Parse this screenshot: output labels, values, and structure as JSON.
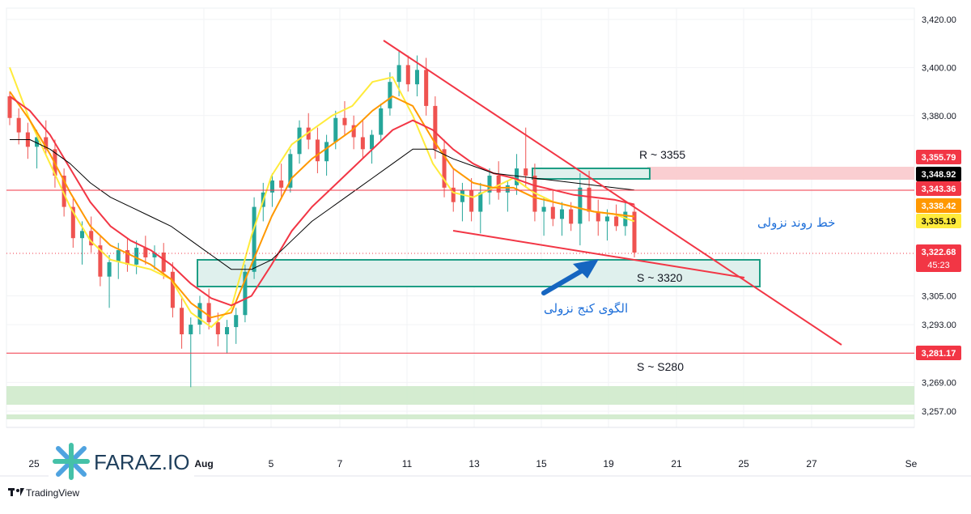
{
  "watermark": {
    "brand": "FARAZ.IO",
    "footer": "TradingView"
  },
  "chart_data": {
    "type": "line",
    "title": "",
    "x_ticks": [
      "25",
      "Aug",
      "5",
      "7",
      "11",
      "13",
      "15",
      "19",
      "21",
      "25",
      "27",
      "Se"
    ],
    "y_ticks": [
      "3,420.00",
      "3,400.00",
      "3,380.00",
      "3,305.00",
      "3,293.00",
      "3,269.00",
      "3,257.00"
    ],
    "price_labels": [
      {
        "value": "3,355.79",
        "color": "#f23645",
        "text_color": "#ffffff"
      },
      {
        "value": "3,348.92",
        "color": "#000000",
        "text_color": "#ffffff"
      },
      {
        "value": "3,343.36",
        "color": "#f23645",
        "text_color": "#ffffff"
      },
      {
        "value": "3,338.42",
        "color": "#ff9800",
        "text_color": "#ffffff"
      },
      {
        "value": "3,335.19",
        "color": "#ffeb3b",
        "text_color": "#000000"
      },
      {
        "value": "3,322.68",
        "color": "#f23645",
        "text_color": "#ffffff",
        "sub": "45:23"
      },
      {
        "value": "3,281.17",
        "color": "#f23645",
        "text_color": "#ffffff"
      }
    ],
    "levels": {
      "resistance": "R ~ 3355",
      "support": "S ~ 3320",
      "support_low": "S ~ S280"
    },
    "annotations": {
      "trendline": "خط روند نزولی",
      "wedge": "الگوی کنج نزولی"
    },
    "candles": [
      {
        "o": 3388,
        "h": 3390,
        "l": 3376,
        "c": 3379
      },
      {
        "o": 3379,
        "h": 3383,
        "l": 3368,
        "c": 3373
      },
      {
        "o": 3373,
        "h": 3377,
        "l": 3362,
        "c": 3367
      },
      {
        "o": 3367,
        "h": 3374,
        "l": 3358,
        "c": 3371
      },
      {
        "o": 3371,
        "h": 3378,
        "l": 3364,
        "c": 3366
      },
      {
        "o": 3366,
        "h": 3370,
        "l": 3350,
        "c": 3355
      },
      {
        "o": 3355,
        "h": 3358,
        "l": 3338,
        "c": 3342
      },
      {
        "o": 3342,
        "h": 3346,
        "l": 3325,
        "c": 3329
      },
      {
        "o": 3329,
        "h": 3336,
        "l": 3318,
        "c": 3332
      },
      {
        "o": 3332,
        "h": 3338,
        "l": 3323,
        "c": 3326
      },
      {
        "o": 3326,
        "h": 3330,
        "l": 3309,
        "c": 3313
      },
      {
        "o": 3313,
        "h": 3322,
        "l": 3300,
        "c": 3319
      },
      {
        "o": 3319,
        "h": 3327,
        "l": 3312,
        "c": 3324
      },
      {
        "o": 3324,
        "h": 3329,
        "l": 3315,
        "c": 3318
      },
      {
        "o": 3318,
        "h": 3328,
        "l": 3314,
        "c": 3325
      },
      {
        "o": 3325,
        "h": 3330,
        "l": 3318,
        "c": 3321
      },
      {
        "o": 3321,
        "h": 3326,
        "l": 3316,
        "c": 3323
      },
      {
        "o": 3323,
        "h": 3327,
        "l": 3312,
        "c": 3315
      },
      {
        "o": 3315,
        "h": 3319,
        "l": 3296,
        "c": 3300
      },
      {
        "o": 3300,
        "h": 3304,
        "l": 3283,
        "c": 3289
      },
      {
        "o": 3289,
        "h": 3296,
        "l": 3267,
        "c": 3293
      },
      {
        "o": 3293,
        "h": 3305,
        "l": 3289,
        "c": 3302
      },
      {
        "o": 3302,
        "h": 3308,
        "l": 3291,
        "c": 3294
      },
      {
        "o": 3294,
        "h": 3298,
        "l": 3284,
        "c": 3289
      },
      {
        "o": 3289,
        "h": 3295,
        "l": 3281,
        "c": 3292
      },
      {
        "o": 3292,
        "h": 3300,
        "l": 3285,
        "c": 3297
      },
      {
        "o": 3297,
        "h": 3318,
        "l": 3294,
        "c": 3315
      },
      {
        "o": 3315,
        "h": 3346,
        "l": 3312,
        "c": 3342
      },
      {
        "o": 3342,
        "h": 3352,
        "l": 3336,
        "c": 3348
      },
      {
        "o": 3348,
        "h": 3356,
        "l": 3342,
        "c": 3353
      },
      {
        "o": 3353,
        "h": 3360,
        "l": 3346,
        "c": 3350
      },
      {
        "o": 3350,
        "h": 3366,
        "l": 3348,
        "c": 3364
      },
      {
        "o": 3364,
        "h": 3378,
        "l": 3360,
        "c": 3375
      },
      {
        "o": 3375,
        "h": 3381,
        "l": 3366,
        "c": 3370
      },
      {
        "o": 3370,
        "h": 3375,
        "l": 3356,
        "c": 3361
      },
      {
        "o": 3361,
        "h": 3372,
        "l": 3355,
        "c": 3369
      },
      {
        "o": 3369,
        "h": 3382,
        "l": 3366,
        "c": 3379
      },
      {
        "o": 3379,
        "h": 3386,
        "l": 3372,
        "c": 3376
      },
      {
        "o": 3376,
        "h": 3380,
        "l": 3366,
        "c": 3371
      },
      {
        "o": 3371,
        "h": 3378,
        "l": 3362,
        "c": 3366
      },
      {
        "o": 3366,
        "h": 3374,
        "l": 3360,
        "c": 3372
      },
      {
        "o": 3372,
        "h": 3385,
        "l": 3369,
        "c": 3383
      },
      {
        "o": 3383,
        "h": 3398,
        "l": 3380,
        "c": 3394
      },
      {
        "o": 3394,
        "h": 3407,
        "l": 3388,
        "c": 3401
      },
      {
        "o": 3401,
        "h": 3405,
        "l": 3390,
        "c": 3393
      },
      {
        "o": 3393,
        "h": 3405,
        "l": 3388,
        "c": 3399
      },
      {
        "o": 3399,
        "h": 3404,
        "l": 3380,
        "c": 3384
      },
      {
        "o": 3384,
        "h": 3388,
        "l": 3362,
        "c": 3366
      },
      {
        "o": 3366,
        "h": 3370,
        "l": 3346,
        "c": 3350
      },
      {
        "o": 3350,
        "h": 3358,
        "l": 3340,
        "c": 3344
      },
      {
        "o": 3344,
        "h": 3352,
        "l": 3336,
        "c": 3349
      },
      {
        "o": 3349,
        "h": 3354,
        "l": 3336,
        "c": 3340
      },
      {
        "o": 3340,
        "h": 3352,
        "l": 3331,
        "c": 3348
      },
      {
        "o": 3348,
        "h": 3358,
        "l": 3343,
        "c": 3355
      },
      {
        "o": 3355,
        "h": 3361,
        "l": 3345,
        "c": 3348
      },
      {
        "o": 3348,
        "h": 3353,
        "l": 3340,
        "c": 3351
      },
      {
        "o": 3351,
        "h": 3364,
        "l": 3347,
        "c": 3358
      },
      {
        "o": 3358,
        "h": 3375,
        "l": 3350,
        "c": 3355
      },
      {
        "o": 3355,
        "h": 3360,
        "l": 3336,
        "c": 3340
      },
      {
        "o": 3340,
        "h": 3346,
        "l": 3330,
        "c": 3342
      },
      {
        "o": 3342,
        "h": 3349,
        "l": 3334,
        "c": 3337
      },
      {
        "o": 3337,
        "h": 3344,
        "l": 3330,
        "c": 3341
      },
      {
        "o": 3341,
        "h": 3344,
        "l": 3332,
        "c": 3335
      },
      {
        "o": 3335,
        "h": 3356,
        "l": 3326,
        "c": 3350
      },
      {
        "o": 3350,
        "h": 3357,
        "l": 3336,
        "c": 3340
      },
      {
        "o": 3340,
        "h": 3345,
        "l": 3330,
        "c": 3336
      },
      {
        "o": 3336,
        "h": 3341,
        "l": 3328,
        "c": 3338
      },
      {
        "o": 3338,
        "h": 3343,
        "l": 3332,
        "c": 3334
      },
      {
        "o": 3334,
        "h": 3344,
        "l": 3330,
        "c": 3340
      },
      {
        "o": 3340,
        "h": 3343,
        "l": 3321,
        "c": 3323
      }
    ],
    "moving_averages": [
      {
        "color": "#ffeb3b",
        "values": [
          3400,
          3378,
          3360,
          3342,
          3328,
          3320,
          3318,
          3316,
          3312,
          3298,
          3292,
          3300,
          3330,
          3355,
          3368,
          3374,
          3380,
          3384,
          3394,
          3396,
          3380,
          3360,
          3348,
          3346,
          3350,
          3354,
          3348,
          3344,
          3342,
          3340,
          3339,
          3336
        ]
      },
      {
        "color": "#ff9800",
        "values": [
          3390,
          3378,
          3364,
          3348,
          3334,
          3326,
          3322,
          3318,
          3312,
          3302,
          3296,
          3298,
          3318,
          3338,
          3354,
          3362,
          3368,
          3374,
          3382,
          3388,
          3384,
          3370,
          3358,
          3352,
          3350,
          3350,
          3346,
          3344,
          3342,
          3340,
          3339,
          3338
        ]
      },
      {
        "color": "#f23645",
        "values": [
          3388,
          3382,
          3372,
          3358,
          3344,
          3334,
          3328,
          3324,
          3318,
          3310,
          3304,
          3301,
          3305,
          3318,
          3332,
          3342,
          3350,
          3358,
          3366,
          3374,
          3378,
          3374,
          3366,
          3360,
          3356,
          3354,
          3351,
          3349,
          3347,
          3346,
          3345,
          3343
        ]
      },
      {
        "color": "#000000",
        "values": [
          3370,
          3370,
          3366,
          3360,
          3352,
          3346,
          3342,
          3338,
          3334,
          3328,
          3322,
          3316,
          3316,
          3320,
          3328,
          3336,
          3342,
          3348,
          3354,
          3360,
          3366,
          3366,
          3362,
          3359,
          3356,
          3355,
          3354,
          3353,
          3352,
          3351,
          3350,
          3349
        ]
      }
    ]
  }
}
